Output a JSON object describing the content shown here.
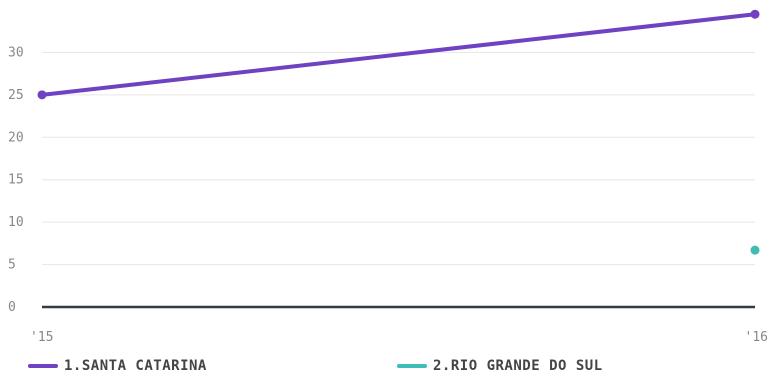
{
  "chart_data": {
    "type": "line",
    "x": [
      "'15",
      "'16"
    ],
    "xlabel": "",
    "ylabel": "",
    "ylim": [
      0,
      35
    ],
    "y_ticks": [
      0,
      5,
      10,
      15,
      20,
      25,
      30
    ],
    "grid": true,
    "legend_placement": "bottom",
    "series": [
      {
        "name": "1.SANTA CATARINA",
        "color": "#6f42c1",
        "values": [
          25,
          34.5
        ]
      },
      {
        "name": "2.RIO GRANDE DO SUL",
        "color": "#3dbdb3",
        "values": [
          null,
          6.7
        ]
      }
    ]
  }
}
